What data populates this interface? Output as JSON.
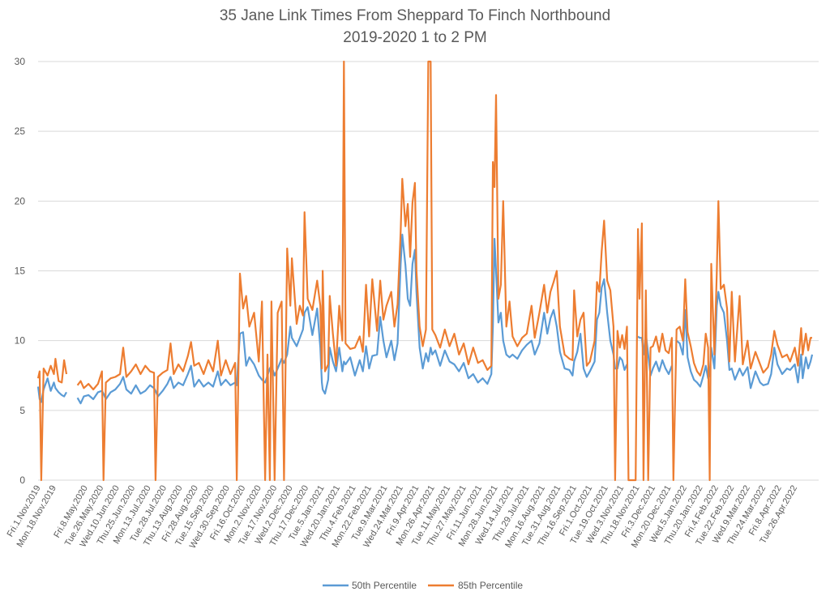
{
  "chart_data": {
    "type": "line",
    "title": "35 Jane Link Times From Sheppard To Finch Northbound",
    "subtitle": "2019-2020 1 to 2 PM",
    "xlabel": "",
    "ylabel": "",
    "ylim": [
      0,
      30
    ],
    "yticks": [
      0,
      5,
      10,
      15,
      20,
      25,
      30
    ],
    "grid": true,
    "legend_placement": "bottom",
    "x_unit_note": "x = position in tick intervals along the date axis (each tick interval = 11 weekdays)",
    "x_tick_labels": [
      "Fri.1.Nov.2019",
      "Mon.18.Nov.2019",
      "Fri.8.May.2020",
      "Tue.26.May.2020",
      "Wed.10.Jun.2020",
      "Thu.25.Jun.2020",
      "Mon.13.Jul.2020",
      "Tue.28.Jul.2020",
      "Thu.13.Aug.2020",
      "Fri.28.Aug.2020",
      "Tue.15.Sep.2020",
      "Wed.30.Sep.2020",
      "Fri.16.Oct.2020",
      "Mon.2.Nov.2020",
      "Tue.17.Nov.2020",
      "Wed.2.Dec.2020",
      "Thu.17.Dec.2020",
      "Tue.5.Jan.2021",
      "Wed.20.Jan.2021",
      "Thu.4.Feb.2021",
      "Mon.22.Feb.2021",
      "Tue.9.Mar.2021",
      "Wed.24.Mar.2021",
      "Fri.9.Apr.2021",
      "Mon.26.Apr.2021",
      "Tue.11.May.2021",
      "Thu.27.May.2021",
      "Fri.11.Jun.2021",
      "Mon.28.Jun.2021",
      "Wed.14.Jul.2021",
      "Thu.29.Jul.2021",
      "Mon.16.Aug.2021",
      "Tue.31.Aug.2021",
      "Thu.16.Sep.2021",
      "Fri.1.Oct.2021",
      "Tue.19.Oct.2021",
      "Wed.3.Nov.2021",
      "Thu.18.Nov.2021",
      "Fri.3.Dec.2021",
      "Mon.20.Dec.2021",
      "Wed.5.Jan.2022",
      "Thu.20.Jan.2022",
      "Fri.4.Feb.2022",
      "Tue.22.Feb.2022",
      "Wed.9.Mar.2022",
      "Thu.24.Mar.2022",
      "Fri.8.Apr.2022",
      "Tue.26.Apr.2022"
    ],
    "x": [
      0,
      0.1,
      0.2,
      0.35,
      0.6,
      0.8,
      1.0,
      1.1,
      1.3,
      1.5,
      1.65,
      1.8,
      2.2,
      2.5,
      2.7,
      2.9,
      3.2,
      3.5,
      3.8,
      4.05,
      4.15,
      4.3,
      4.6,
      4.9,
      5.2,
      5.4,
      5.6,
      5.9,
      6.2,
      6.5,
      6.8,
      7.1,
      7.35,
      7.45,
      7.6,
      7.9,
      8.2,
      8.4,
      8.6,
      8.9,
      9.2,
      9.5,
      9.7,
      9.9,
      10.2,
      10.5,
      10.8,
      11.1,
      11.4,
      11.6,
      11.9,
      12.2,
      12.5,
      12.6,
      12.8,
      13.0,
      13.2,
      13.4,
      13.7,
      14.0,
      14.2,
      14.4,
      14.55,
      14.7,
      14.8,
      15.0,
      15.2,
      15.45,
      15.6,
      15.8,
      16.0,
      16.1,
      16.4,
      16.6,
      16.8,
      16.9,
      17.1,
      17.4,
      17.7,
      17.9,
      18.0,
      18.05,
      18.2,
      18.4,
      18.5,
      18.7,
      18.9,
      19.1,
      19.3,
      19.4,
      19.5,
      19.8,
      20.1,
      20.4,
      20.6,
      20.8,
      21.0,
      21.2,
      21.5,
      21.7,
      21.9,
      22.1,
      22.4,
      22.6,
      22.8,
      23.0,
      23.1,
      23.3,
      23.45,
      23.6,
      23.75,
      23.9,
      24.0,
      24.2,
      24.4,
      24.6,
      24.75,
      24.9,
      25.0,
      25.2,
      25.5,
      25.8,
      26.1,
      26.4,
      26.7,
      27.0,
      27.3,
      27.6,
      27.9,
      28.2,
      28.5,
      28.75,
      28.85,
      28.95,
      29.05,
      29.2,
      29.35,
      29.5,
      29.7,
      29.9,
      30.1,
      30.4,
      30.7,
      31.0,
      31.3,
      31.5,
      31.8,
      32.1,
      32.3,
      32.5,
      32.7,
      32.9,
      33.1,
      33.4,
      33.7,
      33.9,
      34.0,
      34.2,
      34.4,
      34.6,
      34.8,
      35.0,
      35.3,
      35.45,
      35.6,
      35.75,
      35.9,
      36.1,
      36.3,
      36.5,
      36.6,
      36.75,
      36.9,
      37.05,
      37.2,
      37.35,
      37.45,
      37.9,
      38.05,
      38.15,
      38.3,
      38.4,
      38.55,
      38.7,
      38.85,
      39.0,
      39.2,
      39.4,
      39.6,
      39.8,
      40.0,
      40.2,
      40.3,
      40.5,
      40.7,
      40.9,
      41.05,
      41.2,
      41.4,
      41.6,
      41.8,
      42.0,
      42.2,
      42.35,
      42.5,
      42.6,
      42.7,
      42.9,
      43.05,
      43.15,
      43.3,
      43.5,
      43.7,
      43.85,
      44.0,
      44.2,
      44.5,
      44.7,
      45.0,
      45.2,
      45.5,
      45.8,
      46.0,
      46.3,
      46.5,
      46.7,
      46.9,
      47.2,
      47.5,
      47.7,
      48.0,
      48.2,
      48.4,
      48.5,
      48.7,
      48.85,
      49.0,
      49.1
    ],
    "series": [
      {
        "name": "50th Percentile",
        "color": "#5b9bd5",
        "values": [
          6.7,
          5.8,
          5.6,
          6.5,
          7.3,
          6.4,
          7.0,
          6.6,
          6.3,
          6.1,
          6.0,
          6.3,
          null,
          5.9,
          5.5,
          6.0,
          6.1,
          5.8,
          6.3,
          6.4,
          6.2,
          5.8,
          6.3,
          6.5,
          6.9,
          7.4,
          6.5,
          6.2,
          6.8,
          6.2,
          6.4,
          6.8,
          6.6,
          6.4,
          6.0,
          6.4,
          6.9,
          7.4,
          6.6,
          7.0,
          6.8,
          7.6,
          8.2,
          6.7,
          7.2,
          6.7,
          7.0,
          6.7,
          7.8,
          6.8,
          7.2,
          6.8,
          7.0,
          6.8,
          10.5,
          10.6,
          8.2,
          8.8,
          8.3,
          7.5,
          7.2,
          7.0,
          7.5,
          8.0,
          8.2,
          7.5,
          8.0,
          8.7,
          8.4,
          9.0,
          11.0,
          10.2,
          9.6,
          10.2,
          10.8,
          12.0,
          12.4,
          10.4,
          12.3,
          9.5,
          7.0,
          6.5,
          6.2,
          7.2,
          9.5,
          8.5,
          7.8,
          9.5,
          7.8,
          8.5,
          8.3,
          8.8,
          7.5,
          8.6,
          7.8,
          9.6,
          8.0,
          8.9,
          9.0,
          11.7,
          10.0,
          8.8,
          10.0,
          8.6,
          9.8,
          15.5,
          17.6,
          15.4,
          13.0,
          12.5,
          15.5,
          16.5,
          13.5,
          9.5,
          8.0,
          9.1,
          8.5,
          9.5,
          9.0,
          9.3,
          8.2,
          9.3,
          8.5,
          8.3,
          7.8,
          8.4,
          7.3,
          7.6,
          7.0,
          7.3,
          6.9,
          7.6,
          11.0,
          17.3,
          15.0,
          11.3,
          12.0,
          10.0,
          9.0,
          8.8,
          9.0,
          8.7,
          9.3,
          9.7,
          10.0,
          9.0,
          9.8,
          12.0,
          10.5,
          11.6,
          12.2,
          11.0,
          9.2,
          8.0,
          7.9,
          7.5,
          8.5,
          9.2,
          10.5,
          8.0,
          7.4,
          7.8,
          8.5,
          11.5,
          12.0,
          13.8,
          14.4,
          12.0,
          10.0,
          9.0,
          8.0,
          8.0,
          8.8,
          8.6,
          7.9,
          8.3,
          null,
          null,
          10.3,
          10.2,
          10.2,
          9.0,
          10.5,
          9.0,
          7.5,
          8.0,
          8.5,
          7.8,
          8.6,
          8.0,
          7.6,
          8.2,
          null,
          10.0,
          9.8,
          9.0,
          12.2,
          8.8,
          7.8,
          7.2,
          7.0,
          6.7,
          7.5,
          8.2,
          7.3,
          7.6,
          9.5,
          8.0,
          12.5,
          13.5,
          12.5,
          12.0,
          10.0,
          7.9,
          8.0,
          7.2,
          8.0,
          7.5,
          8.1,
          6.6,
          7.8,
          7.0,
          6.8,
          6.9,
          7.6,
          9.5,
          8.3,
          7.6,
          8.0,
          7.9,
          8.3,
          7.0,
          9.0,
          7.3,
          8.8,
          8.0,
          8.5,
          9.0
        ]
      },
      {
        "name": "85th Percentile",
        "color": "#ed7d31",
        "values": [
          7.3,
          7.8,
          0,
          8.0,
          7.5,
          8.2,
          7.6,
          8.7,
          7.1,
          7.0,
          8.6,
          7.6,
          null,
          6.8,
          7.1,
          6.6,
          6.9,
          6.5,
          6.9,
          7.8,
          0,
          7.0,
          7.3,
          7.4,
          7.6,
          9.5,
          7.4,
          7.8,
          8.3,
          7.6,
          8.2,
          7.8,
          7.7,
          0,
          7.4,
          7.7,
          7.9,
          9.8,
          7.6,
          8.3,
          7.8,
          8.9,
          9.9,
          8.2,
          8.4,
          7.6,
          8.6,
          7.8,
          10.0,
          7.5,
          8.6,
          7.6,
          8.4,
          0,
          14.8,
          12.3,
          13.2,
          11.0,
          12.0,
          8.5,
          12.8,
          0,
          9.0,
          0,
          12.8,
          0,
          12.0,
          12.8,
          0,
          16.6,
          12.5,
          15.9,
          11.2,
          12.5,
          11.8,
          19.2,
          13.0,
          12.2,
          14.3,
          12.5,
          8.0,
          15.0,
          7.8,
          8.3,
          13.2,
          10.5,
          8.2,
          12.5,
          10.0,
          30,
          9.8,
          9.4,
          9.5,
          10.3,
          9.2,
          14.0,
          10.3,
          14.4,
          10.7,
          14.3,
          11.5,
          12.5,
          13.5,
          11.0,
          12.6,
          17.8,
          21.6,
          18.2,
          19.8,
          16.0,
          19.9,
          21.3,
          15.0,
          11.0,
          9.6,
          10.8,
          30,
          30,
          10.8,
          10.4,
          9.5,
          10.8,
          9.6,
          10.5,
          9.0,
          9.8,
          8.3,
          9.5,
          8.4,
          8.6,
          7.9,
          8.2,
          22.8,
          21.0,
          27.6,
          13.0,
          14.0,
          20.0,
          11.0,
          12.8,
          10.3,
          9.6,
          10.2,
          10.5,
          12.5,
          10.2,
          12.0,
          14.0,
          12.0,
          13.5,
          14.2,
          15.0,
          11.0,
          9.0,
          8.7,
          8.6,
          13.6,
          10.3,
          11.5,
          12.0,
          8.2,
          8.5,
          10.0,
          14.2,
          13.5,
          16.4,
          18.6,
          14.3,
          13.6,
          11.0,
          0,
          10.7,
          9.5,
          10.4,
          9.4,
          11.0,
          0,
          0,
          18.0,
          13.0,
          18.4,
          0,
          13.6,
          0,
          9.5,
          9.6,
          10.3,
          9.2,
          10.5,
          9.3,
          9.1,
          10.2,
          0,
          10.8,
          11.0,
          10.0,
          14.4,
          10.6,
          9.6,
          8.4,
          7.8,
          7.5,
          8.3,
          10.5,
          9.5,
          0,
          15.5,
          9.0,
          14.8,
          20.0,
          13.7,
          14.0,
          12.3,
          8.5,
          13.5,
          8.5,
          13.2,
          8.3,
          10.0,
          8.0,
          9.2,
          8.3,
          7.7,
          8.1,
          9.0,
          10.7,
          9.7,
          8.8,
          9.0,
          8.5,
          9.5,
          8.2,
          10.9,
          9.0,
          10.5,
          9.3,
          10.2,
          10.2
        ]
      }
    ]
  }
}
